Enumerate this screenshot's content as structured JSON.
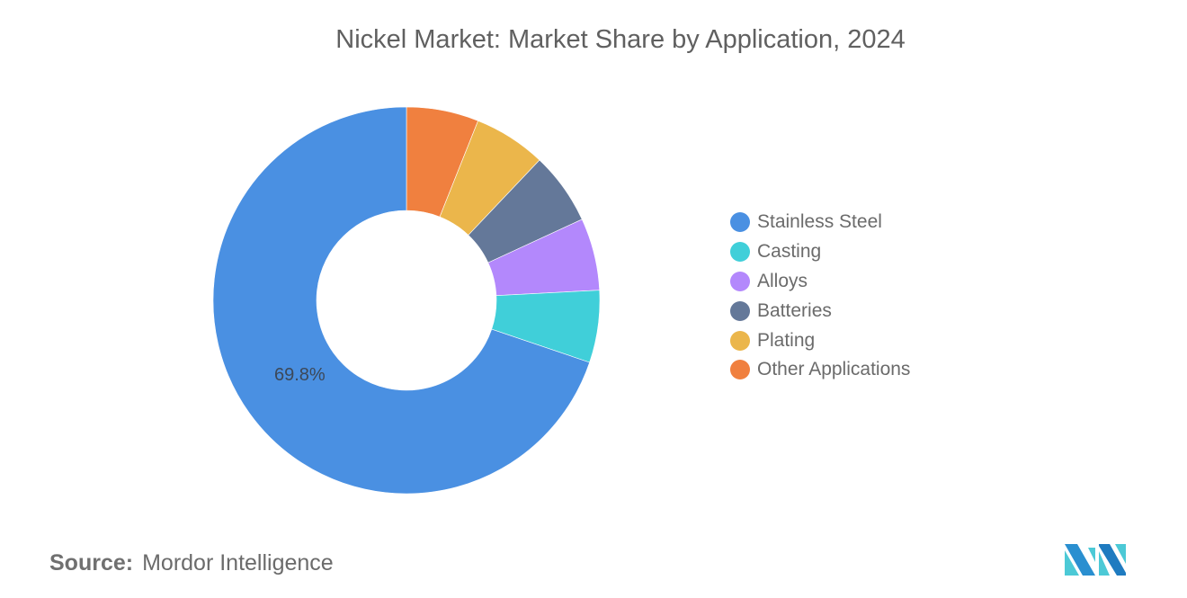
{
  "title": "Nickel Market: Market Share by Application, 2024",
  "chart_data": {
    "type": "pie",
    "variant": "donut",
    "title": "Nickel Market: Market Share by Application, 2024",
    "categories": [
      "Stainless Steel",
      "Casting",
      "Alloys",
      "Batteries",
      "Plating",
      "Other Applications"
    ],
    "values": [
      69.8,
      6.04,
      6.04,
      6.04,
      6.04,
      6.04
    ],
    "colors": [
      "#4a90e2",
      "#40cfd9",
      "#b388fc",
      "#647899",
      "#ebb64b",
      "#f0803f"
    ],
    "data_labels": [
      {
        "category": "Stainless Steel",
        "text": "69.8%"
      }
    ],
    "legend_position": "right",
    "start_angle_deg": 0,
    "direction": "counterclockwise-from-top for Stainless Steel; small slices clockwise from top: Other Applications, Plating, Batteries, Alloys, Casting"
  },
  "legend": {
    "items": [
      {
        "label": "Stainless Steel",
        "color": "#4a90e2"
      },
      {
        "label": "Casting",
        "color": "#40cfd9"
      },
      {
        "label": "Alloys",
        "color": "#b388fc"
      },
      {
        "label": "Batteries",
        "color": "#647899"
      },
      {
        "label": "Plating",
        "color": "#ebb64b"
      },
      {
        "label": "Other Applications",
        "color": "#f0803f"
      }
    ]
  },
  "labels": {
    "stainless_steel": "69.8%"
  },
  "source": {
    "key": "Source:",
    "value": "Mordor Intelligence"
  },
  "logo": {
    "name": "mordor-intelligence-logo",
    "colors": [
      "#2a8fd0",
      "#4cc9d6",
      "#1f7bc0"
    ]
  }
}
